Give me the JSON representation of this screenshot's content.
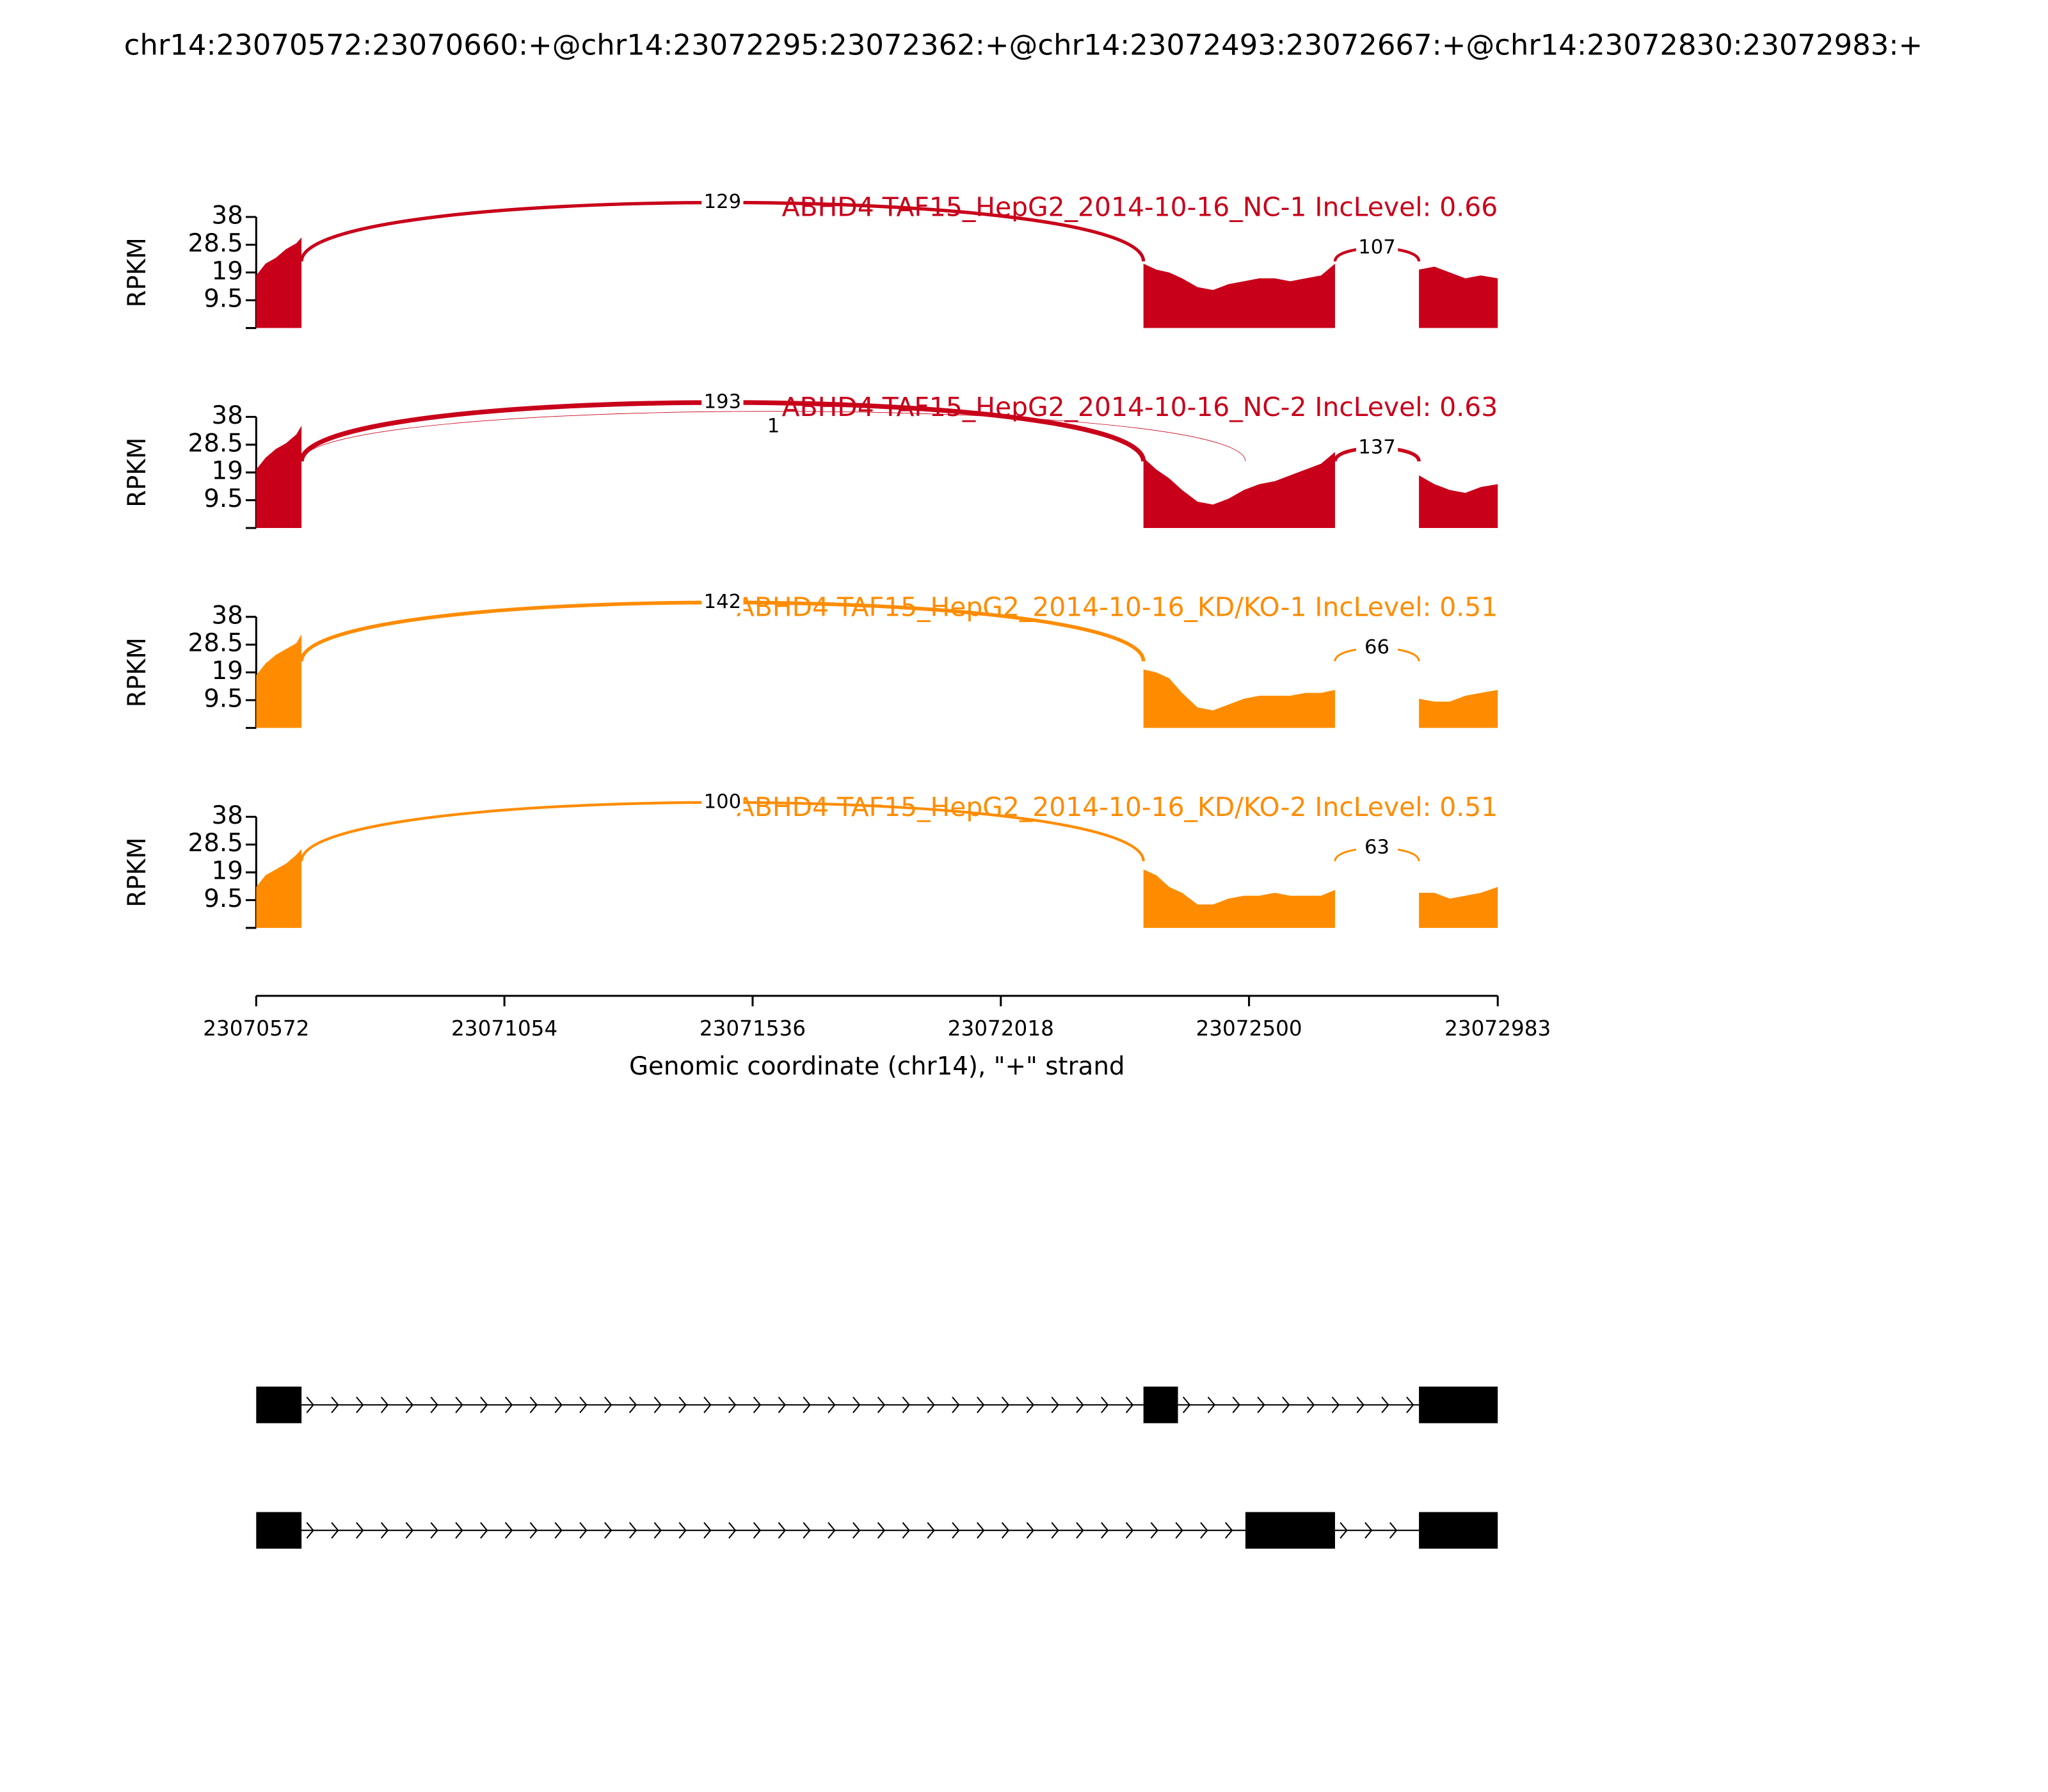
{
  "chart_data": {
    "type": "sashimi",
    "title": "chr14:23070572:23070660:+@chr14:23072295:23072362:+@chr14:23072493:23072667:+@chr14:23072830:23072983:+",
    "xlabel": "Genomic coordinate (chr14), \"+\" strand",
    "ylabel": "RPKM",
    "xlim": [
      23070572,
      23072983
    ],
    "xticks": [
      23070572,
      23071054,
      23071536,
      23072018,
      23072500,
      23072983
    ],
    "ylim": [
      0,
      38
    ],
    "yticks": [
      9.5,
      19,
      28.5,
      38
    ],
    "x": [
      23070572,
      23070590,
      23070610,
      23070630,
      23070650,
      23070660,
      23071500,
      23072295,
      23072320,
      23072345,
      23072370,
      23072400,
      23072430,
      23072460,
      23072490,
      23072520,
      23072550,
      23072580,
      23072610,
      23072640,
      23072667,
      23072750,
      23072830,
      23072860,
      23072890,
      23072920,
      23072950,
      23072983
    ],
    "panels": [
      {
        "label": "ABHD4 TAF15_HepG2_2014-10-16_NC-1 IncLevel: 0.66",
        "color": "#c8001a",
        "values": [
          18,
          22,
          24,
          27,
          29,
          31,
          null,
          22,
          20,
          19,
          17,
          14,
          13,
          15,
          16,
          17,
          17,
          16,
          17,
          18,
          22,
          null,
          20,
          21,
          19,
          17,
          18,
          17
        ],
        "junctions": [
          {
            "start": 23070660,
            "end": 23072295,
            "count": 129
          },
          {
            "start": 23072667,
            "end": 23072830,
            "count": 107
          }
        ]
      },
      {
        "label": "ABHD4 TAF15_HepG2_2014-10-16_NC-2 IncLevel: 0.63",
        "color": "#c8001a",
        "values": [
          20,
          24,
          27,
          29,
          32,
          35,
          null,
          24,
          20,
          17,
          13,
          9,
          8,
          10,
          13,
          15,
          16,
          18,
          20,
          22,
          26,
          null,
          18,
          15,
          13,
          12,
          14,
          15
        ],
        "junctions": [
          {
            "start": 23070660,
            "end": 23072295,
            "count": 193
          },
          {
            "start": 23070660,
            "end": 23072493,
            "count": 1
          },
          {
            "start": 23072667,
            "end": 23072830,
            "count": 137
          }
        ]
      },
      {
        "label": "ABHD4 TAF15_HepG2_2014-10-16_KD/KO-1 IncLevel: 0.51",
        "color": "#ff8c00",
        "values": [
          18,
          22,
          25,
          27,
          29,
          32,
          null,
          20,
          19,
          17,
          12,
          7,
          6,
          8,
          10,
          11,
          11,
          11,
          12,
          12,
          13,
          null,
          10,
          9,
          9,
          11,
          12,
          13
        ],
        "junctions": [
          {
            "start": 23070660,
            "end": 23072295,
            "count": 142
          },
          {
            "start": 23072667,
            "end": 23072830,
            "count": 66
          }
        ]
      },
      {
        "label": "ABHD4 TAF15_HepG2_2014-10-16_KD/KO-2 IncLevel: 0.51",
        "color": "#ff8c00",
        "values": [
          14,
          18,
          20,
          22,
          25,
          27,
          null,
          20,
          18,
          14,
          12,
          8,
          8,
          10,
          11,
          11,
          12,
          11,
          11,
          11,
          13,
          null,
          12,
          12,
          10,
          11,
          12,
          14
        ],
        "junctions": [
          {
            "start": 23070660,
            "end": 23072295,
            "count": 100
          },
          {
            "start": 23072667,
            "end": 23072830,
            "count": 63
          }
        ]
      }
    ],
    "transcripts": [
      {
        "exons": [
          [
            23070572,
            23070660
          ],
          [
            23072295,
            23072362
          ],
          [
            23072830,
            23072983
          ]
        ]
      },
      {
        "exons": [
          [
            23070572,
            23070660
          ],
          [
            23072493,
            23072667
          ],
          [
            23072830,
            23072983
          ]
        ]
      }
    ]
  }
}
